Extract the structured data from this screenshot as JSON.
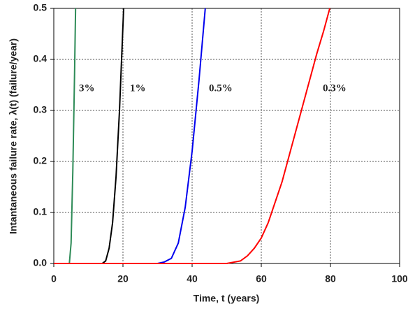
{
  "chart_data": {
    "type": "line",
    "xlabel": "Time, t (years)",
    "ylabel": "Intantaneous failure rate, λ(t)  (failure/year)",
    "xlim": [
      0,
      100
    ],
    "xticks": [
      0,
      20,
      40,
      60,
      80,
      100
    ],
    "ylim": [
      0,
      0.5
    ],
    "yticks": [
      {
        "value": 0,
        "label": "0.0"
      },
      0.1,
      0.2,
      0.3,
      0.4,
      0.5
    ],
    "grid": true,
    "annotations": [
      "3%",
      "1%",
      "0.5%",
      "0.3%"
    ],
    "series": [
      {
        "color": "#2e8b57",
        "x": [
          0,
          4.5,
          5,
          5.5,
          6,
          6.3
        ],
        "values": [
          0,
          0,
          0.04,
          0.18,
          0.37,
          0.5
        ]
      },
      {
        "color": "#000000",
        "x": [
          0,
          14,
          15,
          16,
          17,
          18,
          19,
          20.2
        ],
        "values": [
          0,
          0,
          0.005,
          0.03,
          0.08,
          0.17,
          0.3,
          0.5
        ]
      },
      {
        "color": "#0000ee",
        "x": [
          0,
          30,
          32,
          34,
          36,
          38,
          40,
          42,
          43.8
        ],
        "values": [
          0,
          0,
          0.003,
          0.01,
          0.04,
          0.11,
          0.22,
          0.36,
          0.5
        ]
      },
      {
        "color": "#ff0000",
        "x": [
          0,
          50,
          54,
          56,
          58,
          60,
          62,
          64,
          66,
          68,
          70,
          72,
          74,
          76,
          78,
          79.8
        ],
        "values": [
          0,
          0,
          0.005,
          0.015,
          0.03,
          0.05,
          0.08,
          0.12,
          0.16,
          0.21,
          0.26,
          0.31,
          0.36,
          0.41,
          0.455,
          0.5
        ]
      }
    ]
  }
}
